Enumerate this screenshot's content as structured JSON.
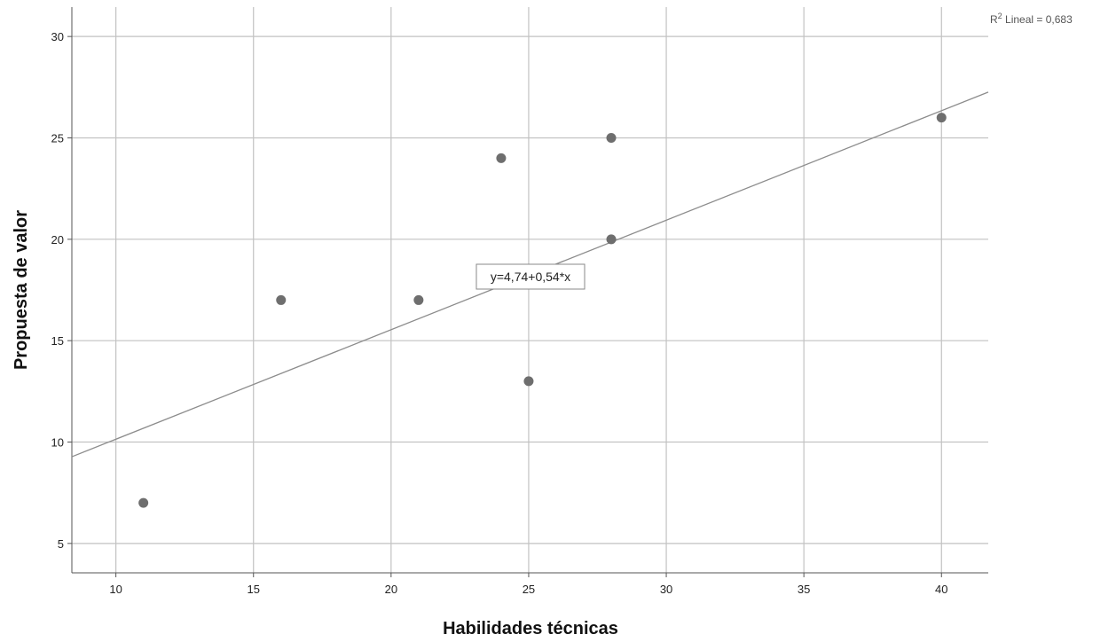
{
  "chart_data": {
    "type": "scatter",
    "title": "",
    "xlabel": "Habilidades técnicas",
    "ylabel": "Propuesta de valor",
    "xlim": [
      8.4,
      41.7
    ],
    "ylim": [
      3.55,
      31.45
    ],
    "x_ticks": [
      10,
      15,
      20,
      25,
      30,
      35,
      40
    ],
    "y_ticks": [
      5,
      10,
      15,
      20,
      25,
      30
    ],
    "grid": true,
    "points": [
      {
        "x": 11,
        "y": 7
      },
      {
        "x": 16,
        "y": 17
      },
      {
        "x": 21,
        "y": 17
      },
      {
        "x": 24,
        "y": 24
      },
      {
        "x": 25,
        "y": 13
      },
      {
        "x": 28,
        "y": 25
      },
      {
        "x": 28,
        "y": 20
      },
      {
        "x": 40,
        "y": 26
      }
    ],
    "fit_line": {
      "intercept": 4.74,
      "slope": 0.54
    },
    "fit_equation": "y=4,74+0,54*x",
    "r2_prefix": "R",
    "r2_sup": "2",
    "r2_text": " Lineal = 0,683",
    "colors": {
      "points": "#6e6e6e",
      "fit_line": "#8c8c8c",
      "grid": "#c2c2c2",
      "axis": "#555555"
    }
  }
}
